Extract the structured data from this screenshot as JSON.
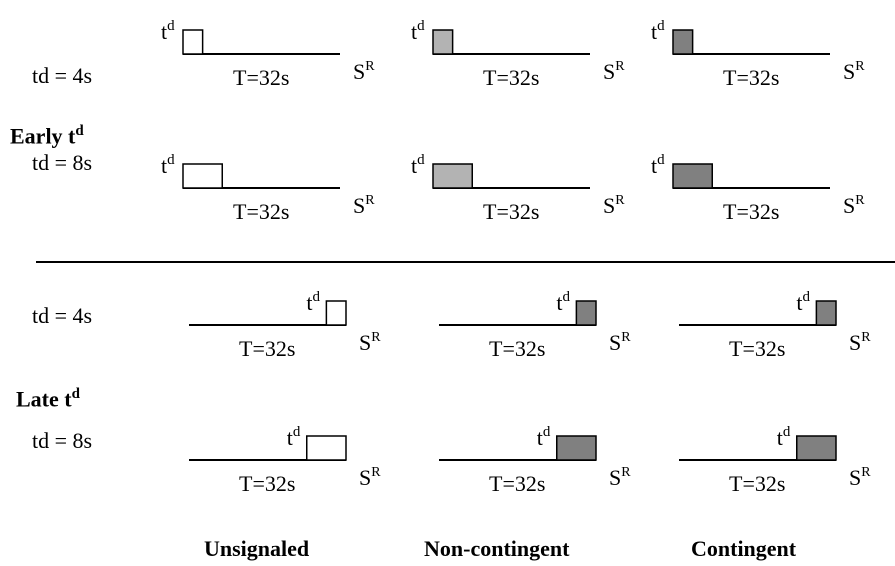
{
  "sections": [
    {
      "label": "Early t",
      "label_sup": "d"
    },
    {
      "label": "Late t",
      "label_sup": "d"
    }
  ],
  "rows": [
    {
      "td_label": "td = 4s"
    },
    {
      "td_label": "td = 8s"
    },
    {
      "td_label": "td = 4s"
    },
    {
      "td_label": "td = 8s"
    }
  ],
  "columns": [
    {
      "label": "Unsignaled",
      "fill": "#ffffff"
    },
    {
      "label": "Non-contingent",
      "fill": "#b3b3b3"
    },
    {
      "label": "Contingent",
      "fill": "#808080"
    }
  ],
  "late_fill_override": {
    "column_index": 1,
    "fill": "#808080"
  },
  "diagram_text": {
    "interval_label": "T=32s",
    "signal_base": "t",
    "signal_sup": "d",
    "reinforcer_base": "S",
    "reinforcer_sup": "R"
  }
}
